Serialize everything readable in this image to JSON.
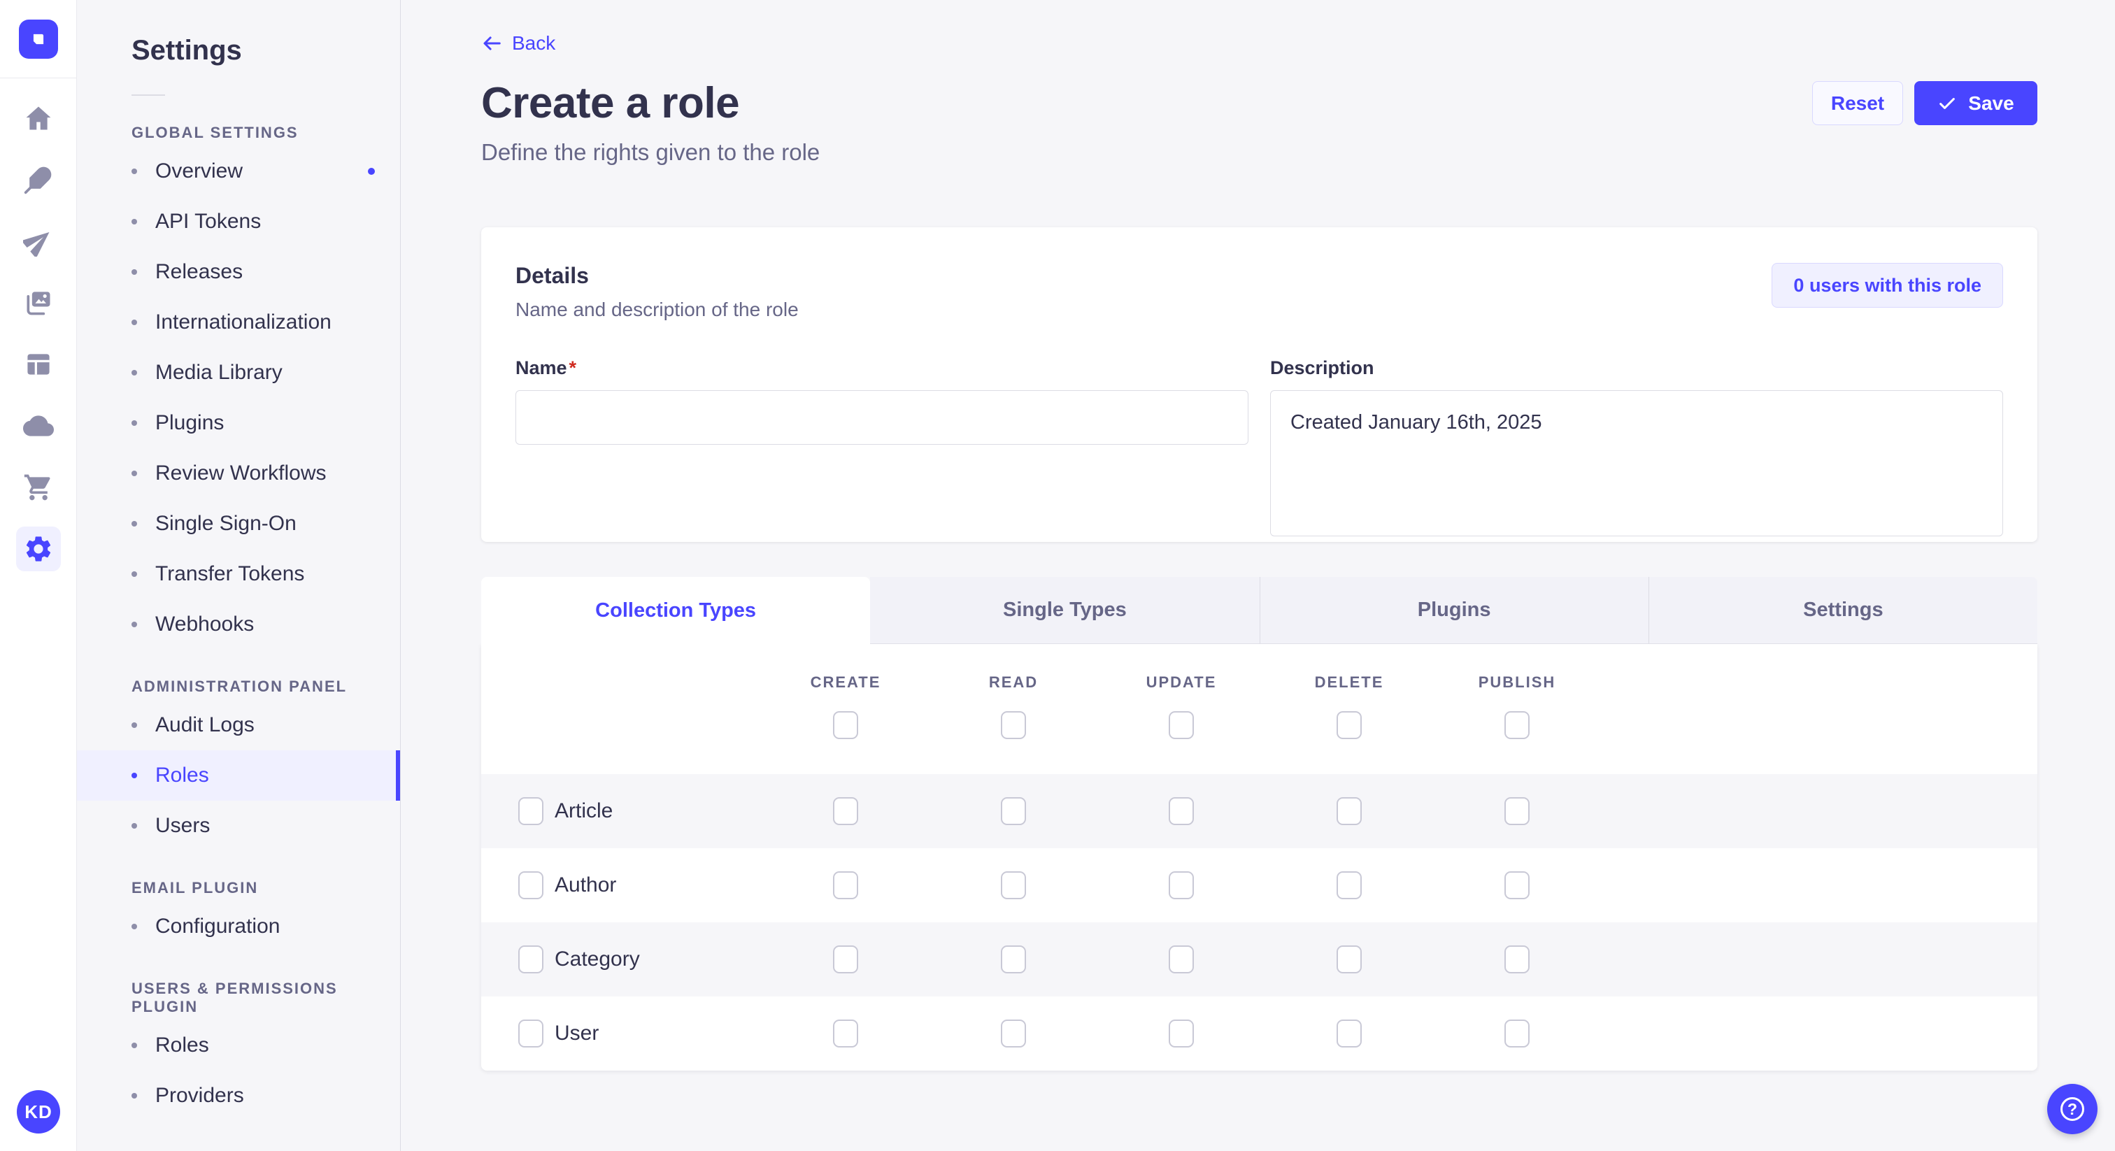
{
  "app": {
    "avatar_initials": "KD",
    "help_icon": "?"
  },
  "rail": {
    "icons": [
      {
        "name": "home"
      },
      {
        "name": "feather"
      },
      {
        "name": "send"
      },
      {
        "name": "media-library"
      },
      {
        "name": "layout"
      },
      {
        "name": "cloud"
      },
      {
        "name": "cart"
      },
      {
        "name": "settings-gear",
        "active": true
      }
    ]
  },
  "subnav": {
    "title": "Settings",
    "sections": [
      {
        "label": "GLOBAL SETTINGS",
        "items": [
          {
            "label": "Overview",
            "notification": true
          },
          {
            "label": "API Tokens"
          },
          {
            "label": "Releases"
          },
          {
            "label": "Internationalization"
          },
          {
            "label": "Media Library"
          },
          {
            "label": "Plugins"
          },
          {
            "label": "Review Workflows"
          },
          {
            "label": "Single Sign-On"
          },
          {
            "label": "Transfer Tokens"
          },
          {
            "label": "Webhooks"
          }
        ]
      },
      {
        "label": "ADMINISTRATION PANEL",
        "items": [
          {
            "label": "Audit Logs"
          },
          {
            "label": "Roles",
            "active": true
          },
          {
            "label": "Users"
          }
        ]
      },
      {
        "label": "EMAIL PLUGIN",
        "items": [
          {
            "label": "Configuration"
          }
        ]
      },
      {
        "label": "USERS & PERMISSIONS PLUGIN",
        "items": [
          {
            "label": "Roles"
          },
          {
            "label": "Providers"
          }
        ]
      }
    ]
  },
  "header": {
    "back_label": "Back",
    "title": "Create a role",
    "subtitle": "Define the rights given to the role",
    "reset_label": "Reset",
    "save_label": "Save"
  },
  "details": {
    "title": "Details",
    "subtitle": "Name and description of the role",
    "users_button": "0 users with this role",
    "name_label": "Name",
    "required_mark": "*",
    "name_value": "",
    "description_label": "Description",
    "description_value": "Created January 16th, 2025"
  },
  "permissions": {
    "tabs": [
      {
        "label": "Collection Types",
        "active": true
      },
      {
        "label": "Single Types"
      },
      {
        "label": "Plugins"
      },
      {
        "label": "Settings"
      }
    ],
    "columns": [
      "CREATE",
      "READ",
      "UPDATE",
      "DELETE",
      "PUBLISH"
    ],
    "select_all_checks": [
      false,
      false,
      false,
      false,
      false
    ],
    "rows": [
      {
        "label": "Article",
        "row_checkbox": false,
        "checks": [
          false,
          false,
          false,
          false,
          false
        ]
      },
      {
        "label": "Author",
        "row_checkbox": false,
        "checks": [
          false,
          false,
          false,
          false,
          false
        ]
      },
      {
        "label": "Category",
        "row_checkbox": false,
        "checks": [
          false,
          false,
          false,
          false,
          false
        ]
      },
      {
        "label": "User",
        "row_checkbox": false,
        "checks": [
          false,
          false,
          false,
          false,
          false
        ]
      }
    ]
  },
  "colors": {
    "primary": "#4945FF",
    "primary_bg": "#F0F0FF",
    "primary_border": "#D9D8FF",
    "text": "#32324D",
    "muted": "#666687",
    "border": "#DCDCE4",
    "page_bg": "#F6F6F9",
    "surface": "#FFFFFF",
    "danger": "#D02B20"
  }
}
